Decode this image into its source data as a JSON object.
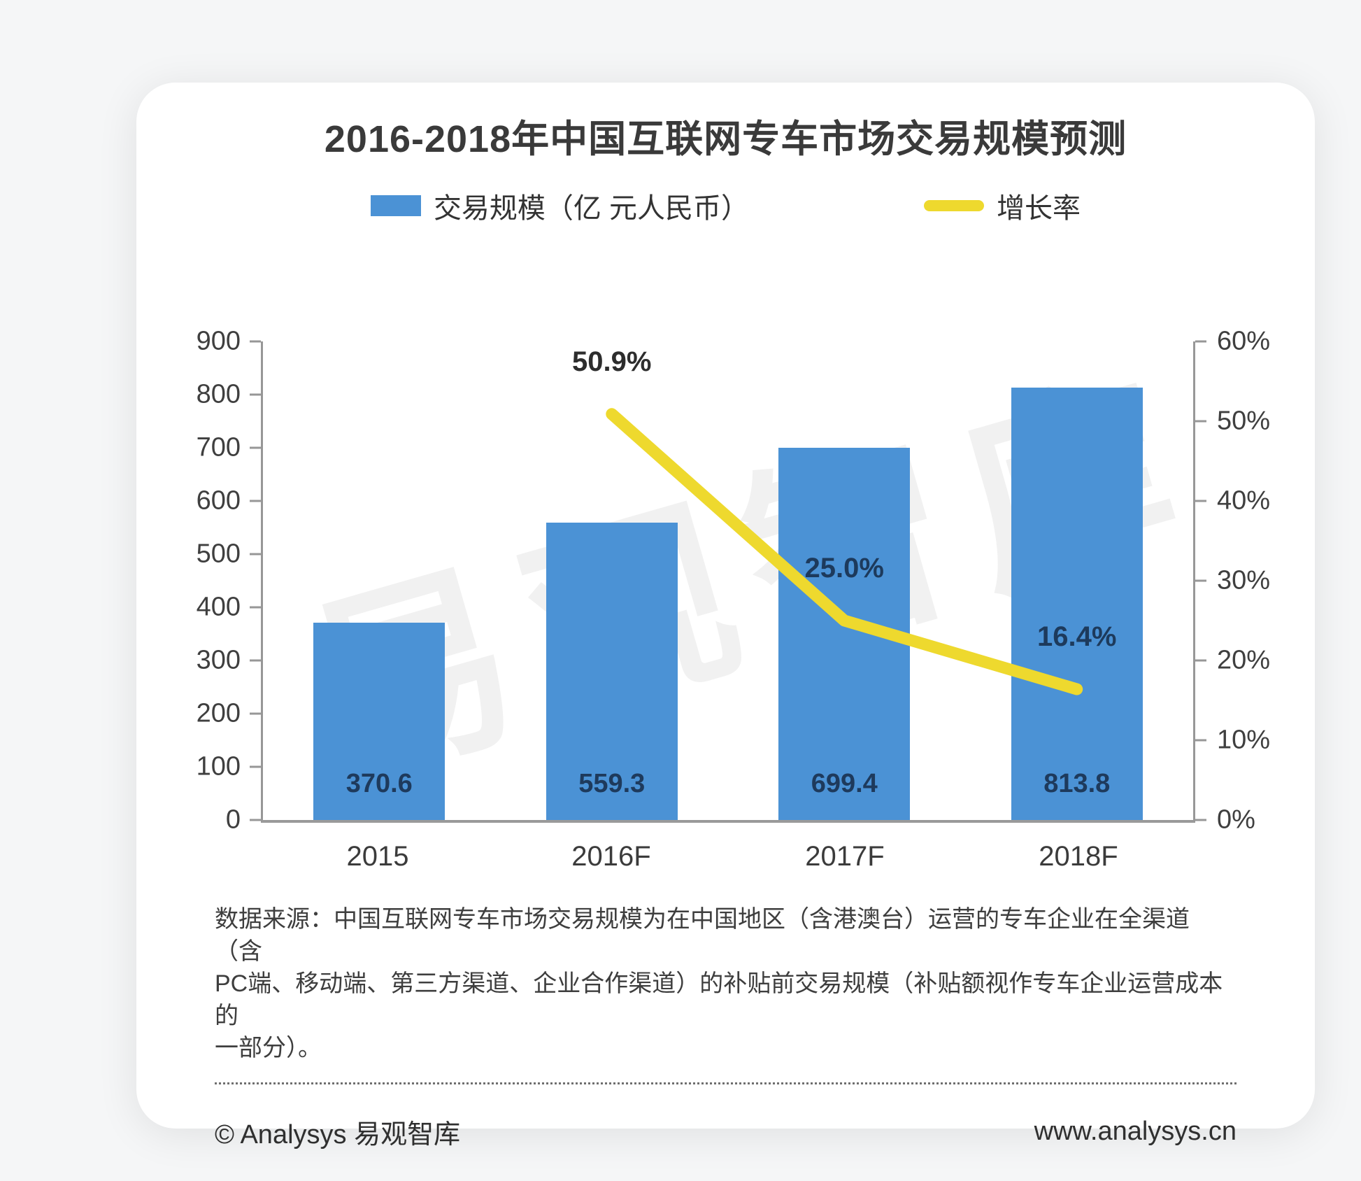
{
  "title": "2016-2018年中国互联网专车市场交易规模预测",
  "source": {
    "lines": [
      "数据来源：中国互联网专车市场交易规模为在中国地区（含港澳台）运营的专车企业在全渠道（含",
      "PC端、移动端、第三方渠道、企业合作渠道）的补贴前交易规模（补贴额视作专车企业运营成本的",
      "一部分）。"
    ]
  },
  "footer": {
    "copyright": "© Analysys 易观智库",
    "website": "www.analysys.cn"
  },
  "chart_data": {
    "type": "combo-bar-line",
    "categories": [
      "2015",
      "2016F",
      "2017F",
      "2018F"
    ],
    "bar_series": {
      "name": "交易规模（亿 元人民币）",
      "color": "#4b92d5",
      "values": [
        370.6,
        559.3,
        699.4,
        813.8
      ],
      "value_labels": [
        "370.6",
        "559.3",
        "699.4",
        "813.8"
      ],
      "label_color": "#1e3a5c"
    },
    "line_series": {
      "name": "增长率",
      "color": "#eed92e",
      "values": [
        null,
        50.9,
        25.0,
        16.4
      ],
      "point_labels": [
        null,
        "50.9%",
        "25.0%",
        "16.4%"
      ],
      "label_colors": [
        null,
        "#2d2d2d",
        "#1d3a5c",
        "#1d3a5c"
      ]
    },
    "left_axis": {
      "min": 0,
      "max": 900,
      "tick_labels": [
        "900",
        "800",
        "700",
        "600",
        "500",
        "400",
        "300",
        "200",
        "100",
        "0"
      ]
    },
    "right_axis": {
      "min": 0,
      "max": 60,
      "tick_labels": [
        "60%",
        "50%",
        "40%",
        "30%",
        "20%",
        "10%",
        "0%"
      ]
    },
    "grid": false,
    "legend_position": "top",
    "watermark": "易观智库"
  }
}
